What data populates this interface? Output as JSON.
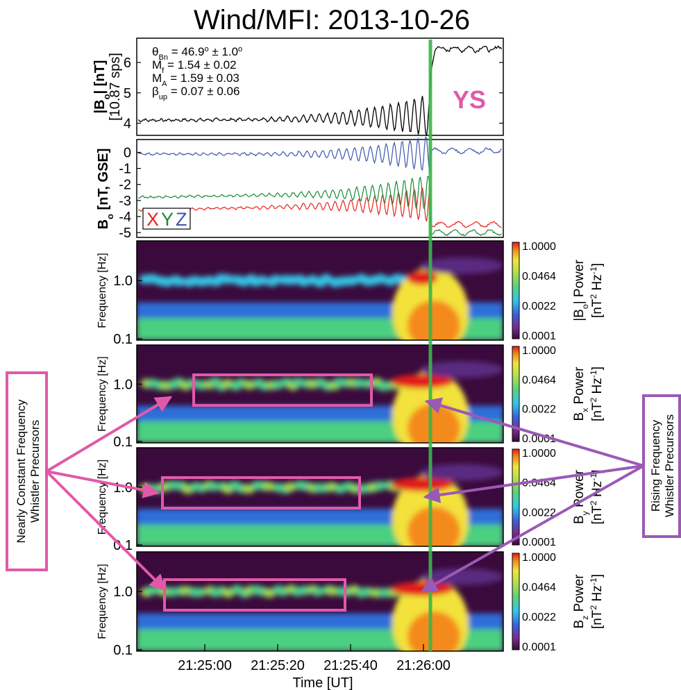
{
  "chart_data": {
    "title": "Wind/MFI: 2013-10-26",
    "xlabel": "Time [UT]",
    "x_ticks": [
      "21:25:00",
      "21:25:20",
      "21:25:40",
      "21:26:00"
    ],
    "annotation_shock": "YS",
    "shock_line_color": "#3bb54a",
    "panels": [
      {
        "type": "line",
        "ylabel": "|Bo| [nT]",
        "ylabel_parts": {
          "pre": "|B",
          "sub": "o",
          "post": "| [nT]"
        },
        "ylabel2": "[10.87 sps]",
        "yticks": [
          "4",
          "5",
          "6"
        ],
        "ylim": [
          3.6,
          6.8
        ],
        "params": [
          {
            "sym": "θ",
            "sub": "Bn",
            "text": " = 46.9",
            "sup": "o",
            "text2": " ± 1.0",
            "sup2": "o"
          },
          {
            "sym": "M",
            "sub": "f",
            "text": " = 1.54 ± 0.02"
          },
          {
            "sym": "M",
            "sub": "A",
            "text": " = 1.59 ± 0.03"
          },
          {
            "sym": "β",
            "sub": "up",
            "text": " = 0.07 ± 0.06"
          }
        ],
        "series": [
          {
            "color": "#000000",
            "values_desc": "upstream ~4.1 nT rising with whistler oscillations to ~5.2 nT, jump to ~6.5 nT at shock"
          }
        ]
      },
      {
        "type": "line",
        "ylabel": "Bo [nT, GSE]",
        "ylabel_parts": {
          "pre": "B",
          "sub": "o",
          "post": " [nT, GSE]"
        },
        "yticks": [
          "0",
          "-1",
          "-2",
          "-3",
          "-4",
          "-5"
        ],
        "ylim": [
          -5.3,
          0.8
        ],
        "legend": [
          "X",
          "Y",
          "Z"
        ],
        "series": [
          {
            "name": "X",
            "color": "#e8231f",
            "up": -3.6,
            "down": -4.5
          },
          {
            "name": "Y",
            "color": "#1a8a35",
            "up": -2.8,
            "down": -5.0
          },
          {
            "name": "Z",
            "color": "#3a56b0",
            "up": -0.1,
            "down": 0.1
          }
        ]
      },
      {
        "type": "heatmap",
        "ylabel": "Frequency [Hz]",
        "yticks": [
          "1.0",
          "0.1"
        ],
        "cbar_label": "|Bo| Power",
        "cbar_parts": {
          "pre": "|B",
          "sub": "o",
          "post": "| Power"
        }
      },
      {
        "type": "heatmap",
        "ylabel": "Frequency [Hz]",
        "yticks": [
          "1.0",
          "0.1"
        ],
        "cbar_label": "Bx Power",
        "cbar_parts": {
          "pre": "B",
          "sub": "x",
          "post": " Power"
        }
      },
      {
        "type": "heatmap",
        "ylabel": "Frequency [Hz]",
        "yticks": [
          "1.0",
          "0.1"
        ],
        "cbar_label": "By Power",
        "cbar_parts": {
          "pre": "B",
          "sub": "y",
          "post": " Power"
        }
      },
      {
        "type": "heatmap",
        "ylabel": "Frequency [Hz]",
        "yticks": [
          "1.0",
          "0.1"
        ],
        "cbar_label": "Bz Power",
        "cbar_parts": {
          "pre": "B",
          "sub": "z",
          "post": " Power"
        }
      }
    ],
    "colorbar": {
      "ticks": [
        "1.0000",
        "0.0464",
        "0.0022",
        "0.0001"
      ],
      "units": "[nT2 Hz-1]"
    },
    "callout_left": {
      "lines": [
        "Nearly Constant Frequency",
        "Whistler Precursors"
      ],
      "color": "#e05aa8"
    },
    "callout_right": {
      "lines": [
        "Rising Frequency",
        "Whistler Precursors"
      ],
      "color": "#9b59b6"
    }
  }
}
